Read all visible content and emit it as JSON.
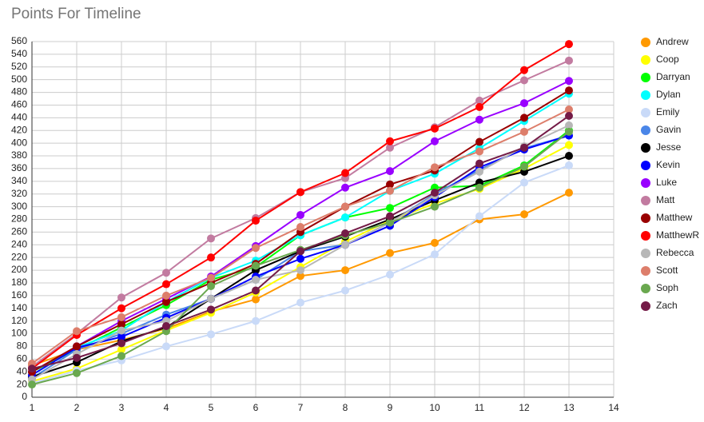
{
  "chart_data": {
    "type": "line",
    "title": "Points For Timeline",
    "x": [
      1,
      2,
      3,
      4,
      5,
      6,
      7,
      8,
      9,
      10,
      11,
      12,
      13
    ],
    "xlim": [
      1,
      14
    ],
    "xticks": [
      1,
      2,
      3,
      4,
      5,
      6,
      7,
      8,
      9,
      10,
      11,
      12,
      13,
      14
    ],
    "ylim": [
      0,
      560
    ],
    "yticks": [
      0,
      20,
      40,
      60,
      80,
      100,
      120,
      140,
      160,
      180,
      200,
      220,
      240,
      260,
      280,
      300,
      320,
      340,
      360,
      380,
      400,
      420,
      440,
      460,
      480,
      500,
      520,
      540,
      560
    ],
    "grid": true,
    "legend": "right",
    "series": [
      {
        "name": "Andrew",
        "color": "#ff9900",
        "values": [
          50,
          75,
          90,
          108,
          135,
          154,
          191,
          200,
          227,
          243,
          280,
          288,
          322
        ]
      },
      {
        "name": "Coop",
        "color": "#ffff00",
        "values": [
          25,
          45,
          75,
          105,
          133,
          165,
          205,
          245,
          278,
          305,
          328,
          360,
          397
        ]
      },
      {
        "name": "Darryan",
        "color": "#00ff00",
        "values": [
          40,
          75,
          110,
          145,
          185,
          205,
          255,
          283,
          298,
          330,
          333,
          365,
          420
        ]
      },
      {
        "name": "Dylan",
        "color": "#00ffff",
        "values": [
          35,
          78,
          105,
          150,
          188,
          215,
          255,
          283,
          325,
          352,
          392,
          435,
          478
        ]
      },
      {
        "name": "Emily",
        "color": "#c9daf8",
        "values": [
          22,
          42,
          58,
          80,
          99,
          120,
          149,
          168,
          193,
          225,
          285,
          338,
          365
        ]
      },
      {
        "name": "Gavin",
        "color": "#4a86e8",
        "values": [
          30,
          75,
          100,
          130,
          155,
          185,
          230,
          240,
          275,
          320,
          358,
          392,
          412
        ]
      },
      {
        "name": "Jesse",
        "color": "#000000",
        "values": [
          32,
          55,
          88,
          110,
          155,
          200,
          230,
          253,
          280,
          310,
          338,
          355,
          380
        ]
      },
      {
        "name": "Kevin",
        "color": "#0000ff",
        "values": [
          35,
          78,
          95,
          125,
          155,
          190,
          218,
          240,
          270,
          315,
          362,
          390,
          412
        ]
      },
      {
        "name": "Luke",
        "color": "#9900ff",
        "values": [
          40,
          80,
          120,
          155,
          190,
          238,
          287,
          330,
          356,
          403,
          437,
          463,
          498
        ]
      },
      {
        "name": "Matt",
        "color": "#c27ba0",
        "values": [
          48,
          100,
          157,
          196,
          250,
          282,
          323,
          345,
          393,
          425,
          467,
          499,
          530
        ]
      },
      {
        "name": "Matthew",
        "color": "#990000",
        "values": [
          40,
          80,
          115,
          150,
          180,
          210,
          260,
          300,
          335,
          357,
          402,
          440,
          483
        ]
      },
      {
        "name": "MatthewR",
        "color": "#ff0000",
        "values": [
          45,
          98,
          140,
          178,
          220,
          278,
          323,
          353,
          403,
          423,
          457,
          515,
          556
        ]
      },
      {
        "name": "Rebecca",
        "color": "#b7b7b7",
        "values": [
          28,
          68,
          105,
          120,
          155,
          185,
          200,
          240,
          275,
          318,
          355,
          395,
          428
        ]
      },
      {
        "name": "Scott",
        "color": "#dd7e6b",
        "values": [
          53,
          104,
          126,
          160,
          188,
          235,
          268,
          300,
          325,
          362,
          387,
          418,
          453
        ]
      },
      {
        "name": "Soph",
        "color": "#6aa84f",
        "values": [
          20,
          38,
          65,
          104,
          175,
          207,
          232,
          255,
          275,
          300,
          330,
          363,
          418
        ]
      },
      {
        "name": "Zach",
        "color": "#741b47",
        "values": [
          45,
          62,
          85,
          112,
          138,
          168,
          230,
          258,
          285,
          322,
          368,
          393,
          443
        ]
      }
    ]
  }
}
